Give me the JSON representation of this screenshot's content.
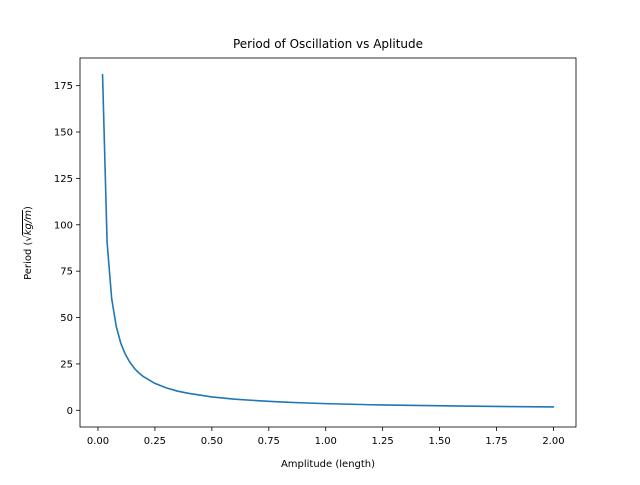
{
  "chart_data": {
    "type": "line",
    "title": "Period of Oscillation vs Aplitude",
    "xlabel": "Amplitude (length)",
    "ylabel": "Period (√kg/m)",
    "ylabel_parts": {
      "prefix": "Period (",
      "radical": "√",
      "radicand": "kg/m",
      "suffix": ")"
    },
    "xlim": [
      -0.079,
      2.099
    ],
    "ylim": [
      -9.0,
      189.9
    ],
    "xticks": [
      0.0,
      0.25,
      0.5,
      0.75,
      1.0,
      1.25,
      1.5,
      1.75,
      2.0
    ],
    "xtick_labels": [
      "0.00",
      "0.25",
      "0.50",
      "0.75",
      "1.00",
      "1.25",
      "1.50",
      "1.75",
      "2.00"
    ],
    "yticks": [
      0,
      25,
      50,
      75,
      100,
      125,
      150,
      175
    ],
    "ytick_labels": [
      "0",
      "25",
      "50",
      "75",
      "100",
      "125",
      "150",
      "175"
    ],
    "grid": false,
    "legend": "none",
    "color": "#1f77b4",
    "series": [
      {
        "x": [
          0.02,
          0.04,
          0.06,
          0.08,
          0.1,
          0.12,
          0.14,
          0.16,
          0.18,
          0.2,
          0.25,
          0.3,
          0.35,
          0.4,
          0.5,
          0.6,
          0.7,
          0.8,
          0.9,
          1.0,
          1.2,
          1.4,
          1.6,
          1.8,
          2.0
        ],
        "y": [
          181.0,
          90.5,
          60.3,
          45.3,
          36.2,
          30.2,
          25.9,
          22.6,
          20.1,
          18.1,
          14.5,
          12.1,
          10.3,
          9.1,
          7.2,
          6.0,
          5.2,
          4.5,
          4.0,
          3.6,
          3.0,
          2.6,
          2.3,
          2.0,
          1.8
        ]
      }
    ]
  }
}
